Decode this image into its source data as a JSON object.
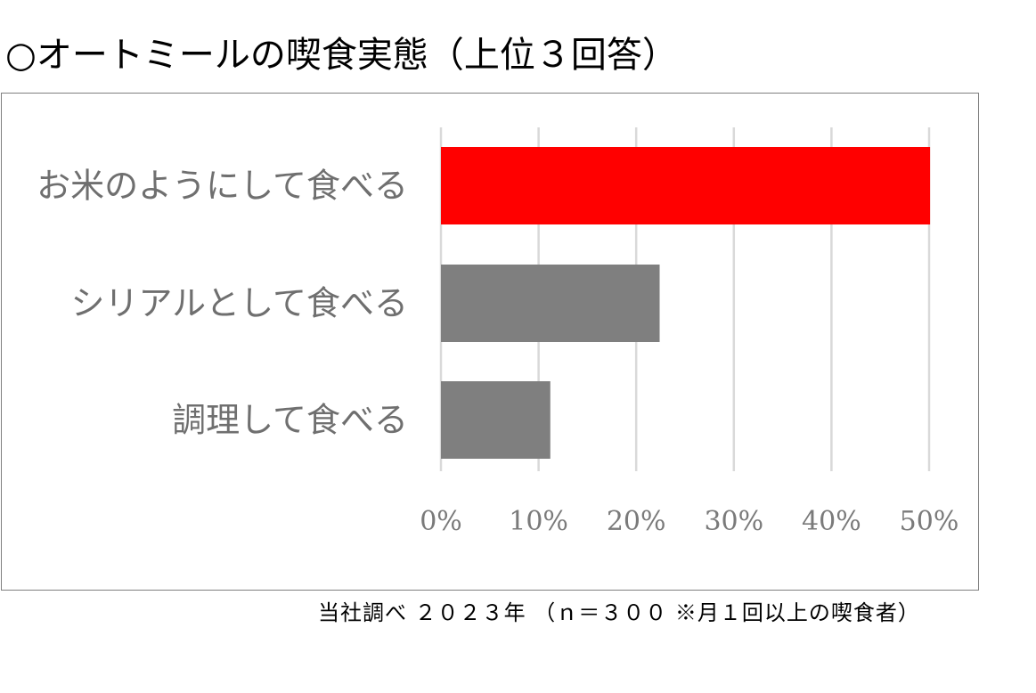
{
  "title": "○オートミールの喫食実態（上位３回答）",
  "footnote": "当社調べ ２０２３年 （ｎ＝３００ ※月１回以上の喫食者）",
  "colors": {
    "highlight": "#ff0000",
    "default": "#7f7f7f",
    "grid": "#d9d9d9"
  },
  "chart_data": {
    "type": "bar",
    "orientation": "horizontal",
    "title": "",
    "categories": [
      "お米のようにして食べる",
      "シリアルとして食べる",
      "調理して食べる"
    ],
    "values": [
      50.1,
      22.4,
      11.2
    ],
    "value_unit": "%",
    "xlim": [
      0,
      50
    ],
    "ticks": [
      0,
      10,
      20,
      30,
      40,
      50
    ],
    "tick_labels": [
      "0%",
      "10%",
      "20%",
      "30%",
      "40%",
      "50%"
    ],
    "grid": true,
    "highlight_index": 0,
    "legend": "none"
  }
}
